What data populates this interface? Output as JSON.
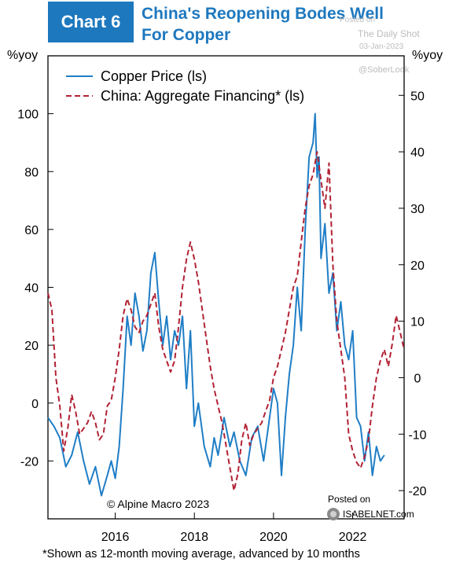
{
  "header": {
    "badge": "Chart 6",
    "title_line1": "China's Reopening Bodes Well",
    "title_line2": "For Copper"
  },
  "watermarks": {
    "posted": "Posted on",
    "site": "The Daily Shot",
    "date": "03-Jan-2023",
    "handle": "@SoberLook"
  },
  "credit": "© Alpine Macro 2023",
  "posted_on": "Posted on",
  "isabelnet": "ISABELNET.com",
  "footnote": "*Shown as 12-month moving average, advanced by 10 months",
  "colors": {
    "copper": "#1f7ec6",
    "financing": "#b22234",
    "accent": "#1e78be"
  },
  "chart_data": {
    "type": "line",
    "left_axis": {
      "unit": "%yoy",
      "ylim": [
        -40,
        120
      ],
      "ticks": [
        -20,
        0,
        20,
        40,
        60,
        80,
        100
      ],
      "tick_labels": [
        "-20",
        "0",
        "20",
        "40",
        "60",
        "80",
        "100"
      ]
    },
    "right_axis": {
      "unit": "%yoy",
      "ylim": [
        -25,
        57
      ],
      "ticks": [
        -20,
        -10,
        0,
        10,
        20,
        30,
        40,
        50
      ],
      "tick_labels": [
        "-20",
        "-10",
        "0",
        "10",
        "20",
        "30",
        "40",
        "50"
      ]
    },
    "x_axis": {
      "xlim": [
        2014.3,
        2023.3
      ],
      "ticks": [
        2016,
        2018,
        2020,
        2022
      ],
      "tick_labels": [
        "2016",
        "2018",
        "2020",
        "2022"
      ]
    },
    "grid": false,
    "legend": "top-left",
    "series": [
      {
        "name": "Copper Price (ls)",
        "style": "solid",
        "axis": "left",
        "x": [
          2014.3,
          2014.45,
          2014.6,
          2014.75,
          2014.9,
          2015.05,
          2015.2,
          2015.35,
          2015.5,
          2015.65,
          2015.8,
          2015.9,
          2016.0,
          2016.1,
          2016.2,
          2016.3,
          2016.4,
          2016.5,
          2016.6,
          2016.7,
          2016.8,
          2016.9,
          2017.0,
          2017.1,
          2017.2,
          2017.3,
          2017.4,
          2017.5,
          2017.6,
          2017.7,
          2017.8,
          2017.9,
          2018.0,
          2018.1,
          2018.25,
          2018.4,
          2018.5,
          2018.6,
          2018.75,
          2018.9,
          2019.0,
          2019.15,
          2019.3,
          2019.45,
          2019.6,
          2019.75,
          2019.9,
          2020.0,
          2020.1,
          2020.2,
          2020.3,
          2020.4,
          2020.5,
          2020.6,
          2020.7,
          2020.8,
          2020.9,
          2021.0,
          2021.05,
          2021.1,
          2021.15,
          2021.2,
          2021.3,
          2021.4,
          2021.5,
          2021.6,
          2021.7,
          2021.8,
          2021.9,
          2022.0,
          2022.1,
          2022.2,
          2022.3,
          2022.4,
          2022.5,
          2022.6,
          2022.7,
          2022.8
        ],
        "values": [
          -5,
          -8,
          -12,
          -22,
          -18,
          -10,
          -20,
          -28,
          -22,
          -32,
          -25,
          -20,
          -26,
          -15,
          5,
          30,
          20,
          38,
          30,
          18,
          25,
          45,
          52,
          35,
          20,
          30,
          15,
          25,
          20,
          30,
          5,
          25,
          -8,
          0,
          -15,
          -22,
          -12,
          -18,
          -5,
          -15,
          -10,
          -20,
          -25,
          -12,
          -8,
          -20,
          -5,
          5,
          0,
          -25,
          -5,
          10,
          20,
          40,
          25,
          60,
          85,
          90,
          100,
          78,
          85,
          50,
          62,
          38,
          45,
          25,
          35,
          20,
          15,
          25,
          -5,
          -8,
          -20,
          -10,
          -25,
          -15,
          -20,
          -18
        ]
      },
      {
        "name": "China: Aggregate Financing* (ls)",
        "style": "dashed",
        "axis": "right",
        "x": [
          2014.3,
          2014.4,
          2014.5,
          2014.6,
          2014.7,
          2014.8,
          2014.9,
          2015.0,
          2015.1,
          2015.2,
          2015.3,
          2015.4,
          2015.5,
          2015.6,
          2015.7,
          2015.8,
          2015.9,
          2016.0,
          2016.1,
          2016.2,
          2016.3,
          2016.4,
          2016.5,
          2016.6,
          2016.7,
          2016.8,
          2016.9,
          2017.0,
          2017.1,
          2017.2,
          2017.3,
          2017.4,
          2017.5,
          2017.6,
          2017.7,
          2017.8,
          2017.9,
          2018.0,
          2018.1,
          2018.2,
          2018.3,
          2018.4,
          2018.5,
          2018.6,
          2018.7,
          2018.8,
          2018.9,
          2019.0,
          2019.1,
          2019.2,
          2019.3,
          2019.4,
          2019.5,
          2019.6,
          2019.7,
          2019.8,
          2019.9,
          2020.0,
          2020.1,
          2020.2,
          2020.3,
          2020.4,
          2020.5,
          2020.6,
          2020.7,
          2020.8,
          2020.9,
          2021.0,
          2021.1,
          2021.2,
          2021.3,
          2021.4,
          2021.5,
          2021.6,
          2021.7,
          2021.8,
          2021.9,
          2022.0,
          2022.1,
          2022.2,
          2022.3,
          2022.4,
          2022.5,
          2022.6,
          2022.7,
          2022.8,
          2022.9,
          2023.0,
          2023.1,
          2023.2,
          2023.3
        ],
        "values": [
          15,
          12,
          0,
          -5,
          -13,
          -9,
          -3,
          -6,
          -10,
          -9,
          -8,
          -6,
          -8,
          -11,
          -10,
          -5,
          -4,
          0,
          5,
          11,
          14,
          12,
          9,
          8,
          10,
          11,
          13,
          15,
          9,
          5,
          3,
          1,
          3,
          9,
          16,
          21,
          24,
          21,
          17,
          12,
          7,
          2,
          -2,
          -5,
          -8,
          -12,
          -16,
          -20,
          -17,
          -11,
          -8,
          -12,
          -10,
          -9,
          -8,
          -6,
          -4,
          0,
          2,
          5,
          8,
          12,
          16,
          18,
          24,
          30,
          34,
          36,
          40,
          35,
          30,
          38,
          20,
          10,
          5,
          0,
          -10,
          -13,
          -15,
          -16,
          -14,
          -11,
          -5,
          0,
          3,
          5,
          2,
          6,
          11,
          8,
          5
        ]
      }
    ]
  }
}
